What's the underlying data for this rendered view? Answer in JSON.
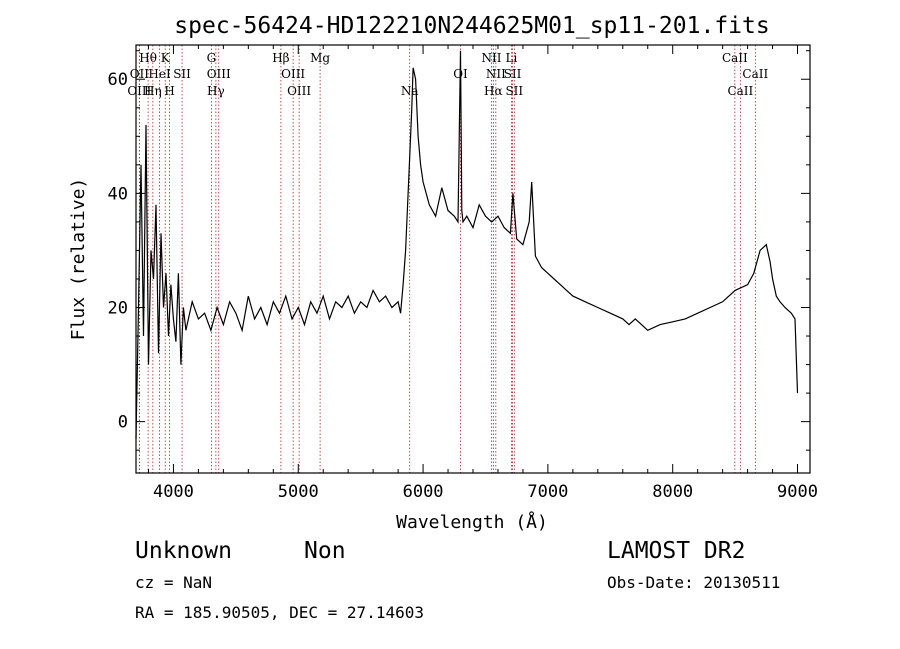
{
  "chart_data": {
    "type": "line",
    "title": "spec-56424-HD122210N244625M01_sp11-201.fits",
    "xlabel": "Wavelength (Å)",
    "ylabel": "Flux (relative)",
    "xlim": [
      3700,
      9100
    ],
    "ylim": [
      -9,
      66
    ],
    "x_ticks": [
      4000,
      5000,
      6000,
      7000,
      8000,
      9000
    ],
    "x_tick_labels": [
      "4000",
      "5000",
      "6000",
      "7000",
      "8000",
      "9000"
    ],
    "y_ticks": [
      0,
      20,
      40,
      60
    ],
    "y_tick_labels": [
      "0",
      "20",
      "40",
      "60"
    ],
    "series": [
      {
        "x": [
          3700,
          3720,
          3740,
          3760,
          3780,
          3800,
          3820,
          3840,
          3860,
          3880,
          3900,
          3920,
          3940,
          3960,
          3980,
          4000,
          4020,
          4040,
          4060,
          4080,
          4100,
          4150,
          4200,
          4250,
          4300,
          4350,
          4400,
          4450,
          4500,
          4550,
          4600,
          4650,
          4700,
          4750,
          4800,
          4850,
          4900,
          4950,
          5000,
          5050,
          5100,
          5150,
          5200,
          5250,
          5300,
          5350,
          5400,
          5450,
          5500,
          5550,
          5600,
          5650,
          5700,
          5750,
          5800,
          5820,
          5840,
          5860,
          5880,
          5900,
          5910,
          5920,
          5940,
          5960,
          5980,
          6000,
          6050,
          6100,
          6150,
          6200,
          6250,
          6280,
          6300,
          6310,
          6320,
          6350,
          6400,
          6450,
          6500,
          6550,
          6600,
          6650,
          6700,
          6720,
          6750,
          6800,
          6850,
          6870,
          6900,
          6950,
          7000,
          7050,
          7100,
          7150,
          7200,
          7300,
          7400,
          7500,
          7600,
          7650,
          7700,
          7750,
          7800,
          7900,
          8000,
          8100,
          8200,
          8300,
          8400,
          8500,
          8600,
          8650,
          8700,
          8750,
          8780,
          8800,
          8830,
          8860,
          8900,
          8950,
          8980,
          9000
        ],
        "y": [
          -3,
          20,
          45,
          15,
          52,
          10,
          30,
          25,
          38,
          12,
          33,
          20,
          26,
          15,
          24,
          18,
          14,
          26,
          10,
          20,
          16,
          21,
          18,
          19,
          16,
          20,
          17,
          21,
          19,
          16,
          22,
          18,
          20,
          17,
          21,
          19,
          22,
          18,
          20,
          17,
          21,
          19,
          22,
          18,
          21,
          20,
          22,
          19,
          21,
          20,
          23,
          21,
          22,
          20,
          21,
          19,
          24,
          30,
          40,
          50,
          55,
          62,
          60,
          50,
          45,
          42,
          38,
          36,
          41,
          37,
          36,
          35,
          65,
          37,
          35,
          36,
          34,
          38,
          36,
          35,
          36,
          34,
          33,
          40,
          32,
          31,
          35,
          42,
          29,
          27,
          26,
          25,
          24,
          23,
          22,
          21,
          20,
          19,
          18,
          17,
          18,
          17,
          16,
          17,
          17.5,
          18,
          19,
          20,
          21,
          23,
          24,
          26,
          30,
          31,
          28,
          25,
          22,
          21,
          20,
          19,
          18,
          5
        ]
      }
    ],
    "annotations": [
      {
        "label": "Hθ",
        "x": 3797,
        "row": 1
      },
      {
        "label": "OII",
        "x": 3727,
        "row": 2
      },
      {
        "label": "OIII",
        "x": 3727,
        "row": 3
      },
      {
        "label": "K",
        "x": 3934,
        "row": 1
      },
      {
        "label": "HeI",
        "x": 3889,
        "row": 2
      },
      {
        "label": "Hη",
        "x": 3835,
        "row": 3
      },
      {
        "label": "SII",
        "x": 4069,
        "row": 2
      },
      {
        "label": "H",
        "x": 3969,
        "row": 3
      },
      {
        "label": "G",
        "x": 4304,
        "row": 1
      },
      {
        "label": "OIII",
        "x": 4363,
        "row": 2
      },
      {
        "label": "Hγ",
        "x": 4340,
        "row": 3
      },
      {
        "label": "Hβ",
        "x": 4861,
        "row": 1
      },
      {
        "label": "OIII",
        "x": 4959,
        "row": 2
      },
      {
        "label": "OIII",
        "x": 5007,
        "row": 3
      },
      {
        "label": "Mg",
        "x": 5175,
        "row": 1
      },
      {
        "label": "Na",
        "x": 5893,
        "row": 3
      },
      {
        "label": "OI",
        "x": 6300,
        "row": 2
      },
      {
        "label": "NII",
        "x": 6548,
        "row": 1
      },
      {
        "label": "NII",
        "x": 6583,
        "row": 2
      },
      {
        "label": "Hα",
        "x": 6563,
        "row": 3
      },
      {
        "label": "Li",
        "x": 6708,
        "row": 1
      },
      {
        "label": "SII",
        "x": 6717,
        "row": 2
      },
      {
        "label": "SII",
        "x": 6731,
        "row": 3
      },
      {
        "label": "CaII",
        "x": 8498,
        "row": 1
      },
      {
        "label": "CaII",
        "x": 8662,
        "row": 2
      },
      {
        "label": "CaII",
        "x": 8542,
        "row": 3
      }
    ]
  },
  "info": {
    "class": "Unknown",
    "subclass": "Non",
    "survey": "LAMOST DR2",
    "cz": "cz = NaN",
    "obs_date": "Obs-Date: 20130511",
    "coords": "RA = 185.90505, DEC =  27.14603"
  }
}
